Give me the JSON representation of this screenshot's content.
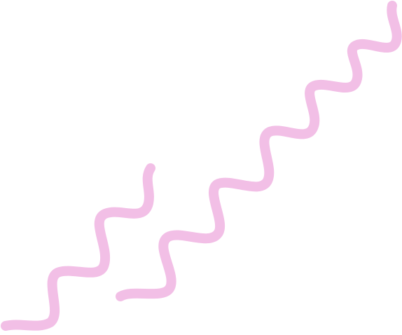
{
  "graphic": {
    "background_color": "#ffffff",
    "stroke_color": "#f2bfe6",
    "shapes": [
      {
        "name": "short-squiggle",
        "kind": "wavy-line"
      },
      {
        "name": "long-squiggle",
        "kind": "wavy-line"
      }
    ]
  }
}
